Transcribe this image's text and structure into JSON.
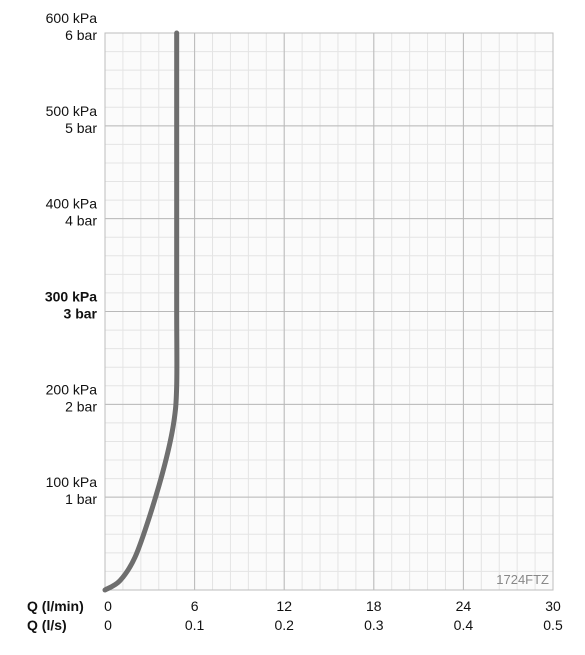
{
  "chart_data": {
    "type": "line",
    "code_label": "1724FTZ",
    "y_axis": {
      "range_kpa": [
        0,
        600
      ],
      "ticks": [
        {
          "value": 100,
          "kpa_label": "100 kPa",
          "bar_label": "1 bar",
          "bold": false
        },
        {
          "value": 200,
          "kpa_label": "200 kPa",
          "bar_label": "2 bar",
          "bold": false
        },
        {
          "value": 300,
          "kpa_label": "300 kPa",
          "bar_label": "3 bar",
          "bold": true
        },
        {
          "value": 400,
          "kpa_label": "400 kPa",
          "bar_label": "4 bar",
          "bold": false
        },
        {
          "value": 500,
          "kpa_label": "500 kPa",
          "bar_label": "5 bar",
          "bold": false
        },
        {
          "value": 600,
          "kpa_label": "600 kPa",
          "bar_label": "6 bar",
          "bold": false
        }
      ]
    },
    "x_axis": {
      "range_lmin": [
        0,
        30
      ],
      "lmin_label": "Q (l/min)",
      "ls_label": "Q (l/s)",
      "ticks_lmin": [
        "0",
        "6",
        "12",
        "18",
        "24",
        "30"
      ],
      "ticks_ls": [
        "0",
        "0.1",
        "0.2",
        "0.3",
        "0.4",
        "0.5"
      ]
    },
    "grid": true,
    "series": [
      {
        "color": "#6e6e6e",
        "points": [
          {
            "x": 0,
            "y": 0
          },
          {
            "x": 1,
            "y": 10
          },
          {
            "x": 2,
            "y": 35
          },
          {
            "x": 3,
            "y": 80
          },
          {
            "x": 4,
            "y": 135
          },
          {
            "x": 4.6,
            "y": 180
          },
          {
            "x": 4.8,
            "y": 220
          },
          {
            "x": 4.8,
            "y": 300
          },
          {
            "x": 4.8,
            "y": 400
          },
          {
            "x": 4.8,
            "y": 500
          },
          {
            "x": 4.8,
            "y": 600
          }
        ]
      }
    ]
  }
}
